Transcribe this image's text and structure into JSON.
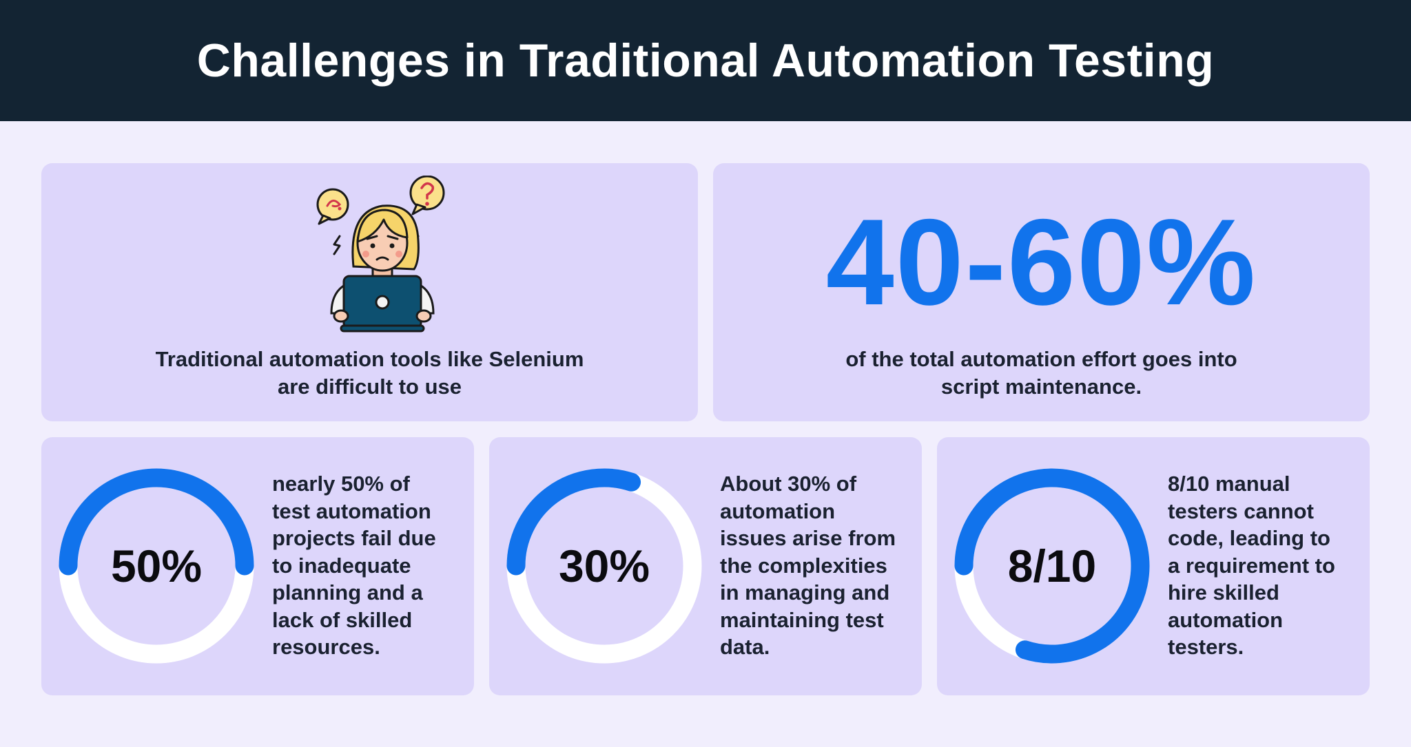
{
  "header": {
    "title": "Challenges in Traditional Automation Testing"
  },
  "card_tools": {
    "icon": "confused-person-laptop-icon",
    "lines": [
      "Traditional automation tools like Selenium",
      "are difficult to use"
    ]
  },
  "card_maintenance": {
    "stat": "40-60%",
    "lines": [
      "of the total automation effort goes into",
      "script maintenance."
    ]
  },
  "stats": [
    {
      "value": "50%",
      "fraction": 0.5,
      "lines": [
        "nearly 50% of",
        "test automation",
        "projects fail due",
        "to inadequate",
        "planning and a",
        "lack of skilled",
        "resources."
      ]
    },
    {
      "value": "30%",
      "fraction": 0.3,
      "lines": [
        "About 30% of",
        "automation",
        "issues arise from",
        "the complexities",
        "in managing and",
        "maintaining test",
        "data."
      ]
    },
    {
      "value": "8/10",
      "fraction": 0.8,
      "lines": [
        "8/10 manual",
        "testers cannot",
        "code, leading to",
        "a requirement to",
        "hire skilled",
        "automation",
        "testers."
      ]
    }
  ],
  "colors": {
    "header_bg": "#132433",
    "page_bg": "#f1eefd",
    "card_bg": "#ddd6fb",
    "accent": "#1173ec",
    "track": "#ffffff",
    "text": "#1a2130"
  }
}
